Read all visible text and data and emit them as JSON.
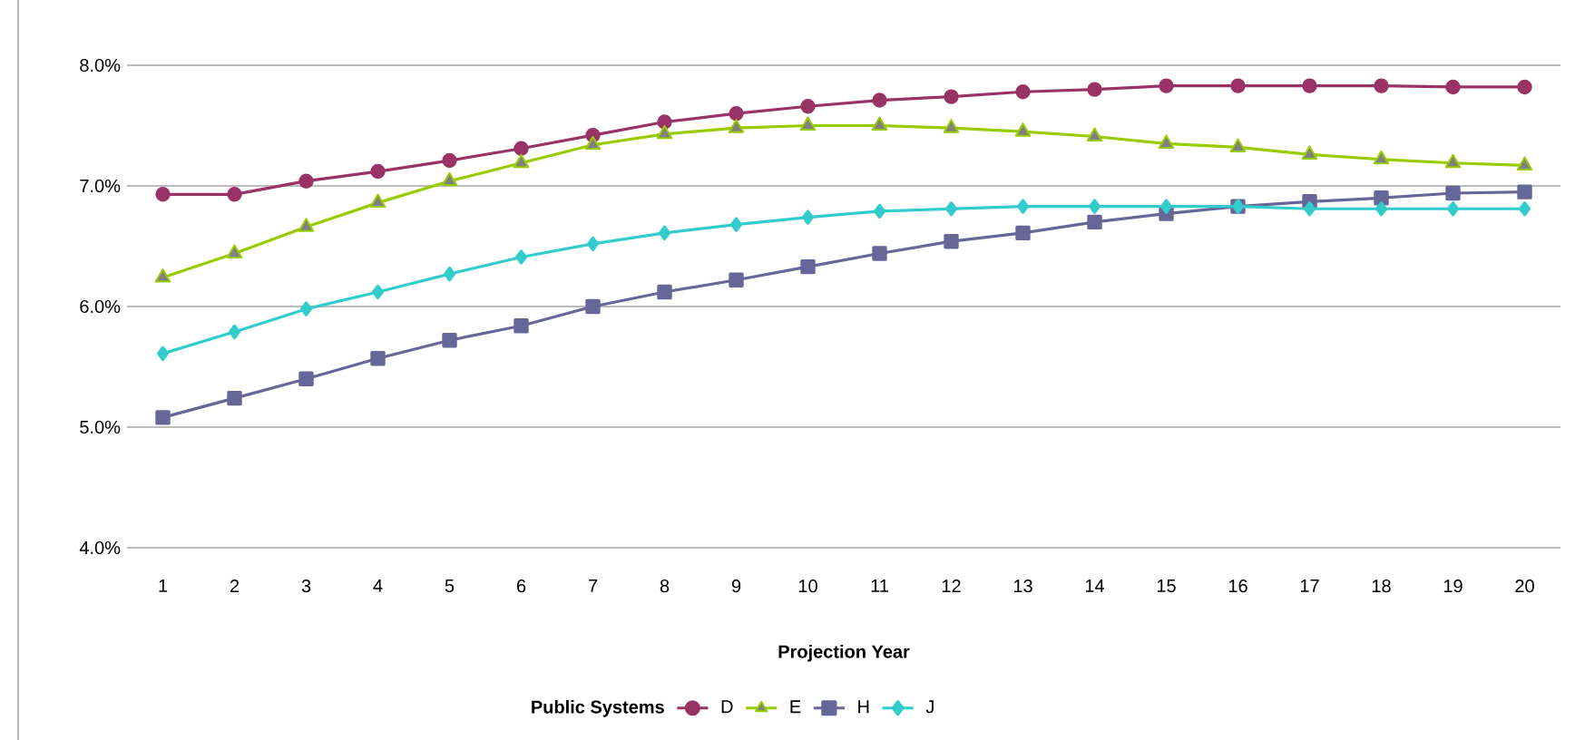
{
  "chart_data": {
    "type": "line",
    "xlabel": "Projection Year",
    "legend_title": "Public Systems",
    "categories": [
      "1",
      "2",
      "3",
      "4",
      "5",
      "6",
      "7",
      "8",
      "9",
      "10",
      "11",
      "12",
      "13",
      "14",
      "15",
      "16",
      "17",
      "18",
      "19",
      "20"
    ],
    "ylim": [
      4,
      8
    ],
    "yticks": [
      {
        "value": 4,
        "label": "4.0%"
      },
      {
        "value": 5,
        "label": "5.0%"
      },
      {
        "value": 6,
        "label": "6.0%"
      },
      {
        "value": 7,
        "label": "7.0%"
      },
      {
        "value": 8,
        "label": "8.0%"
      }
    ],
    "grid": "y",
    "legend": "bottom",
    "line_style": "solid",
    "series": [
      {
        "name": "D",
        "color": "#993366",
        "marker": "circle",
        "values": [
          6.93,
          6.93,
          7.04,
          7.12,
          7.21,
          7.31,
          7.42,
          7.53,
          7.6,
          7.66,
          7.71,
          7.74,
          7.78,
          7.8,
          7.83,
          7.83,
          7.83,
          7.83,
          7.82,
          7.82
        ]
      },
      {
        "name": "E",
        "color": "#99cc00",
        "marker": "triangle",
        "values": [
          6.24,
          6.44,
          6.66,
          6.86,
          7.04,
          7.19,
          7.34,
          7.43,
          7.48,
          7.5,
          7.5,
          7.48,
          7.45,
          7.41,
          7.35,
          7.32,
          7.26,
          7.22,
          7.19,
          7.17
        ]
      },
      {
        "name": "H",
        "color": "#666699",
        "marker": "square",
        "values": [
          5.08,
          5.24,
          5.4,
          5.57,
          5.72,
          5.84,
          6.0,
          6.12,
          6.22,
          6.33,
          6.44,
          6.54,
          6.61,
          6.7,
          6.77,
          6.83,
          6.87,
          6.9,
          6.94,
          6.95
        ]
      },
      {
        "name": "J",
        "color": "#33cccc",
        "marker": "diamond",
        "values": [
          5.61,
          5.79,
          5.98,
          6.12,
          6.27,
          6.41,
          6.52,
          6.61,
          6.68,
          6.74,
          6.79,
          6.81,
          6.83,
          6.83,
          6.83,
          6.83,
          6.81,
          6.81,
          6.81,
          6.81
        ]
      }
    ]
  }
}
